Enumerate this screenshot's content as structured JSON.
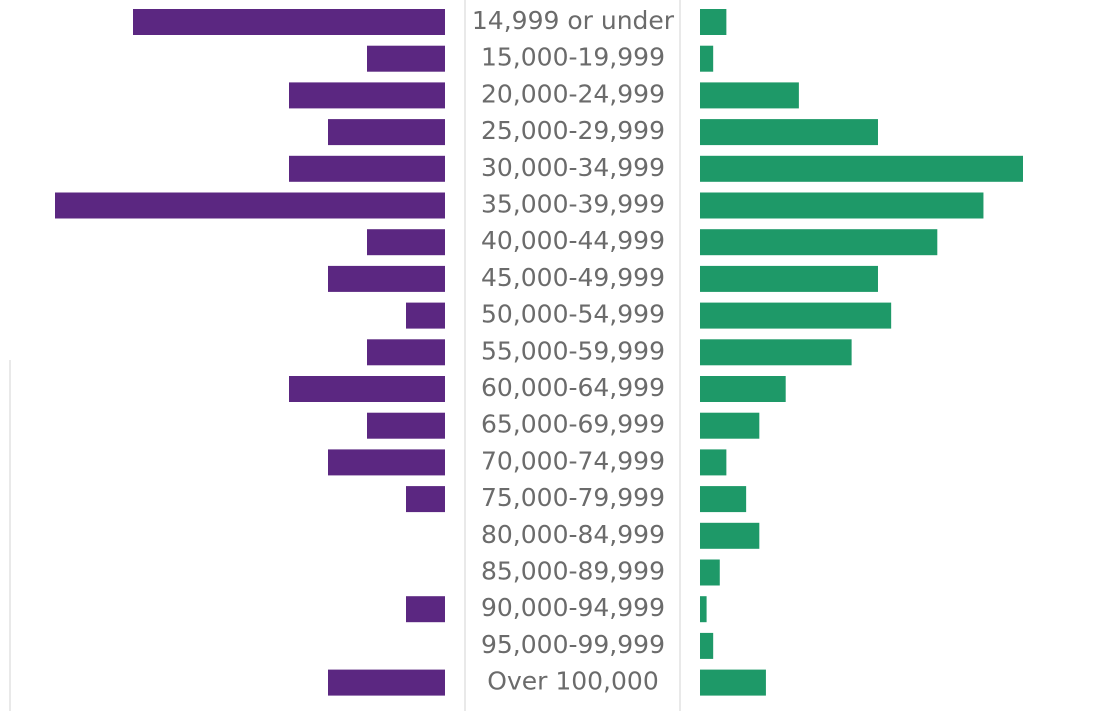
{
  "chart_data": {
    "type": "butterfly-bar",
    "categories": [
      "14,999 or under",
      "15,000-19,999",
      "20,000-24,999",
      "25,000-29,999",
      "30,000-34,999",
      "35,000-39,999",
      "40,000-44,999",
      "45,000-49,999",
      "50,000-54,999",
      "55,000-59,999",
      "60,000-64,999",
      "65,000-69,999",
      "70,000-74,999",
      "75,000-79,999",
      "80,000-84,999",
      "85,000-89,999",
      "90,000-94,999",
      "95,000-99,999",
      "Over 100,000"
    ],
    "series": [
      {
        "color": "#5b2781",
        "values": [
          8,
          2,
          4,
          3,
          4,
          10,
          2,
          3,
          1,
          2,
          4,
          2,
          3,
          1,
          0,
          0,
          1,
          0,
          3
        ]
      },
      {
        "color": "#1e9968",
        "values": [
          4,
          2,
          15,
          27,
          49,
          43,
          36,
          27,
          29,
          23,
          13,
          9,
          4,
          7,
          9,
          3,
          1,
          2,
          10
        ]
      }
    ]
  }
}
